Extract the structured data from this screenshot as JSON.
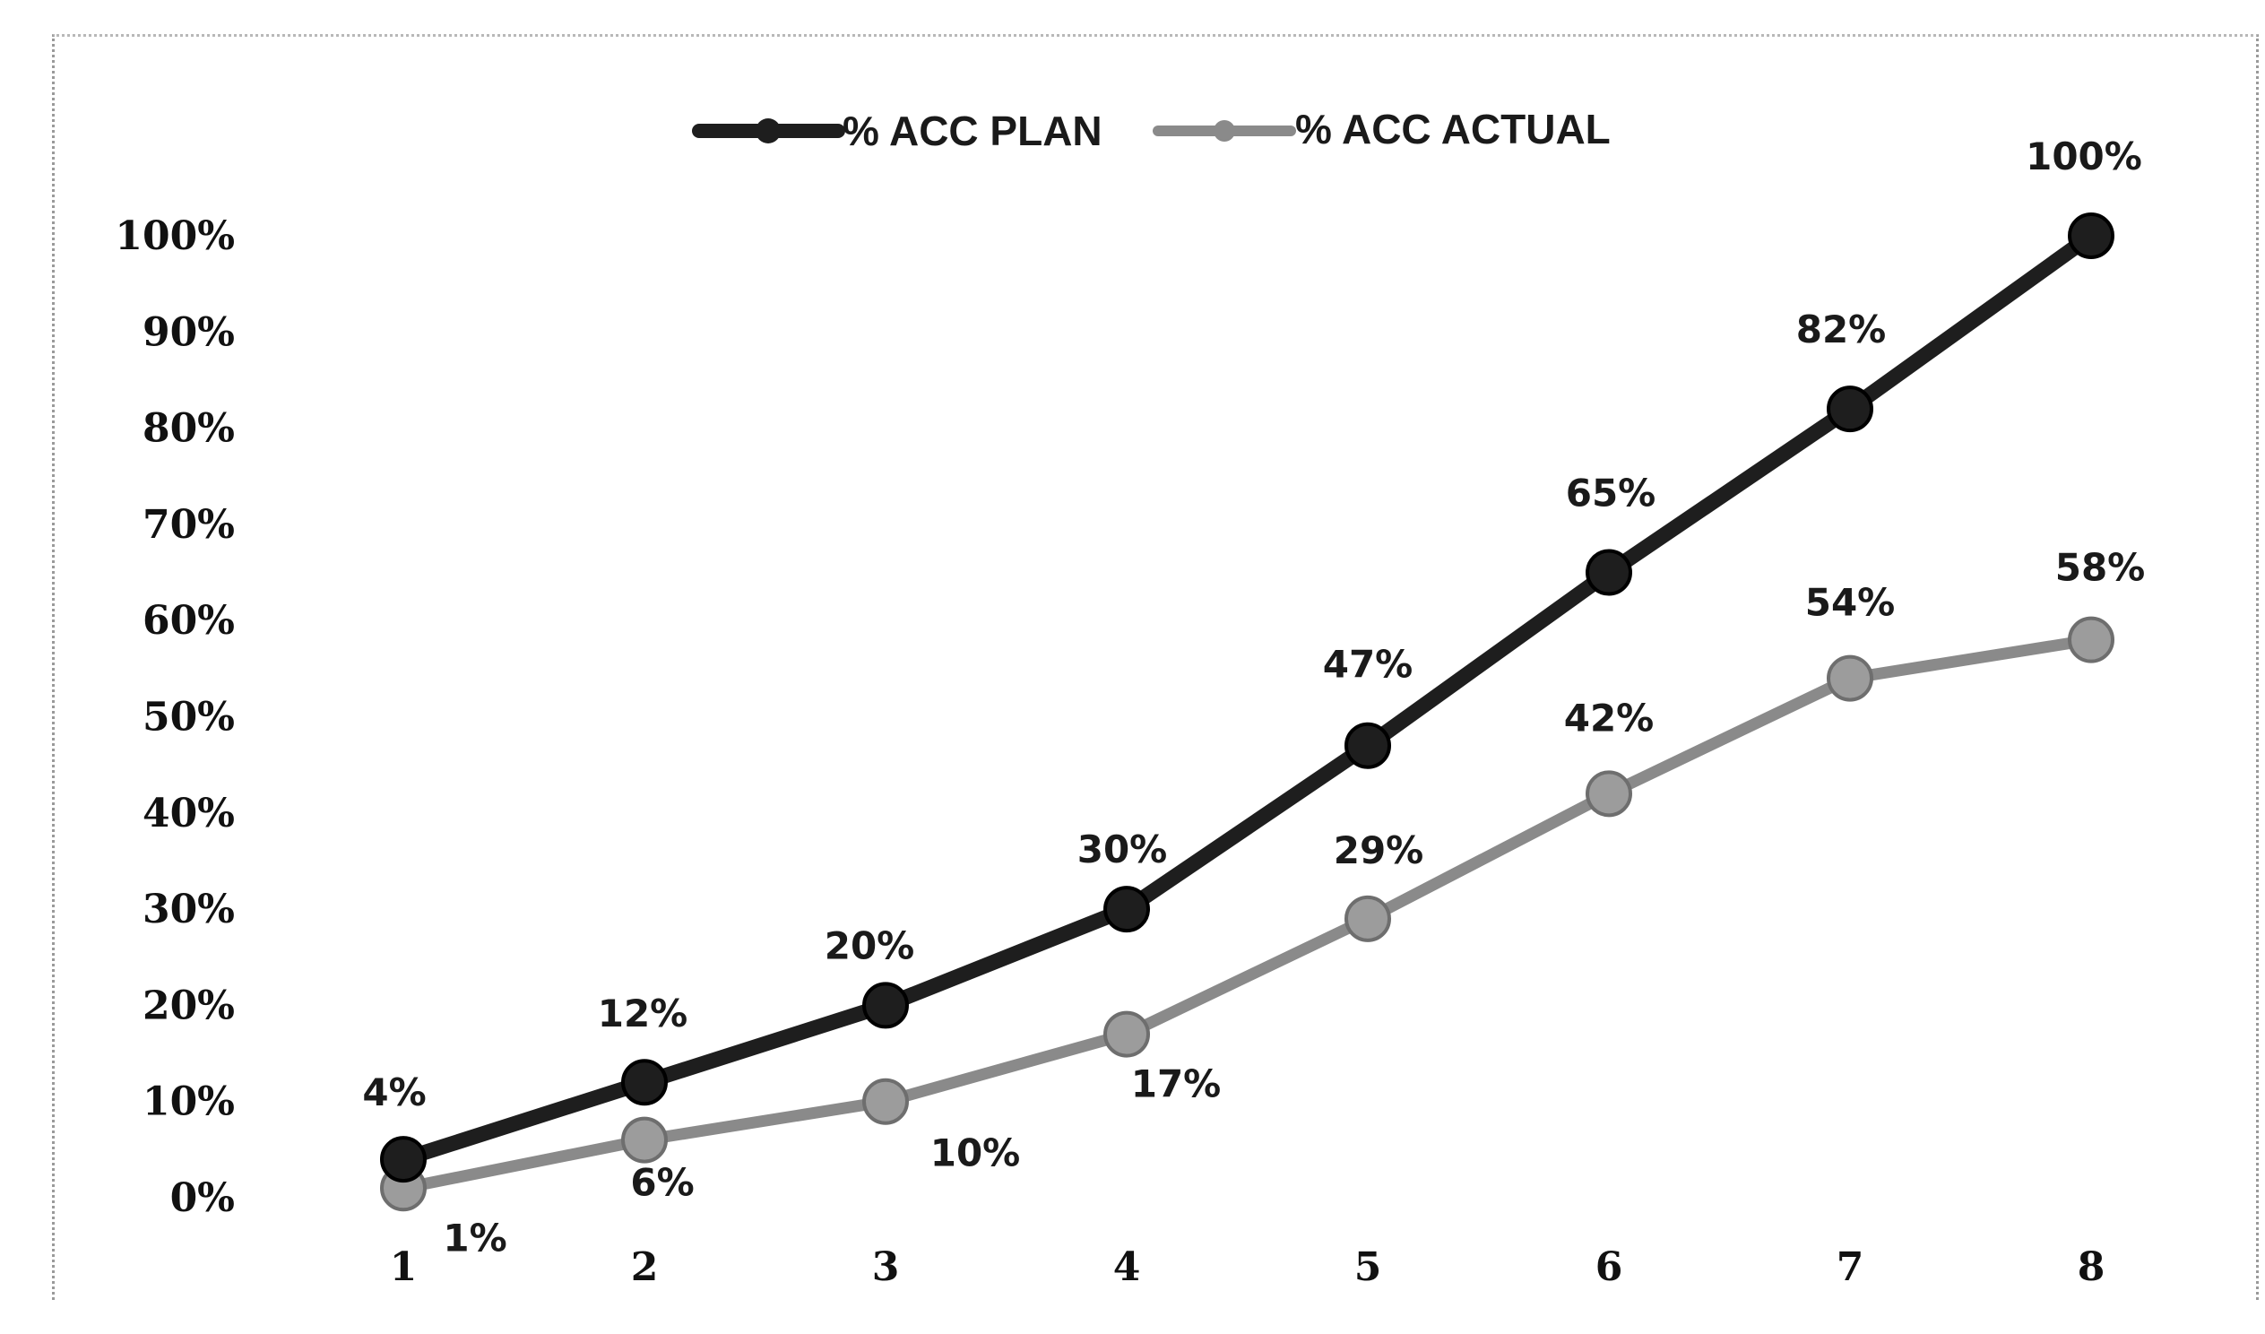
{
  "chart_data": {
    "type": "line",
    "title": "",
    "xlabel": "",
    "ylabel": "",
    "x": [
      "1",
      "2",
      "3",
      "4",
      "5",
      "6",
      "7",
      "8"
    ],
    "y_ticks": [
      "0%",
      "10%",
      "20%",
      "30%",
      "40%",
      "50%",
      "60%",
      "70%",
      "80%",
      "90%",
      "100%"
    ],
    "ylim": [
      0,
      100
    ],
    "grid": false,
    "legend_position": "top",
    "series": [
      {
        "name": "% ACC PLAN",
        "values": [
          4,
          12,
          20,
          30,
          47,
          65,
          82,
          100
        ],
        "labels": [
          "4%",
          "12%",
          "20%",
          "30%",
          "47%",
          "65%",
          "82%",
          "100%"
        ],
        "color": "#1e1e1e"
      },
      {
        "name": "% ACC ACTUAL",
        "values": [
          1,
          6,
          10,
          17,
          29,
          42,
          54,
          58
        ],
        "labels": [
          "1%",
          "6%",
          "10%",
          "17%",
          "29%",
          "42%",
          "54%",
          "58%"
        ],
        "color": "#8a8a8a"
      }
    ]
  }
}
